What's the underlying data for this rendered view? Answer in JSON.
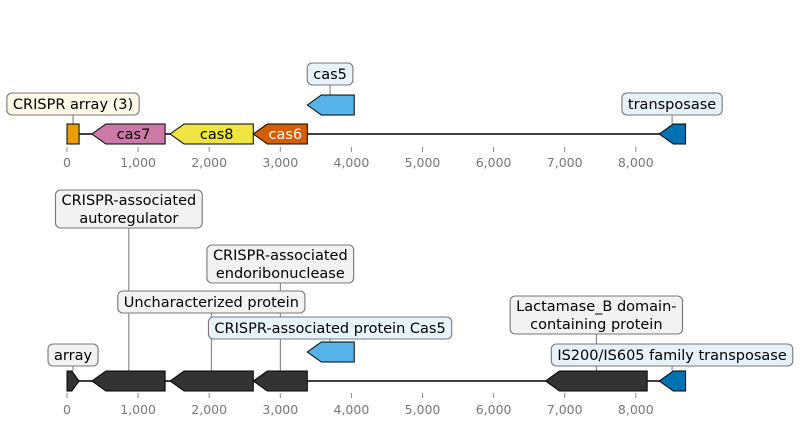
{
  "tracks": [
    {
      "name": "top-track",
      "length": 8700,
      "features": [
        {
          "id": "crispr-array",
          "start": 0,
          "end": 170,
          "strand": 0,
          "color": "#e69f00",
          "label": "",
          "label_color": "#000000"
        },
        {
          "id": "cas7",
          "start": 350,
          "end": 1380,
          "strand": -1,
          "color": "#cc79a7",
          "label": "cas7",
          "label_color": "#000000"
        },
        {
          "id": "cas8",
          "start": 1450,
          "end": 2620,
          "strand": -1,
          "color": "#f0e442",
          "label": "cas8",
          "label_color": "#000000"
        },
        {
          "id": "cas6",
          "start": 2620,
          "end": 3380,
          "strand": -1,
          "color": "#d55e00",
          "label": "cas6",
          "label_color": "#ffffff"
        },
        {
          "id": "cas5",
          "start": 3380,
          "end": 4040,
          "strand": -1,
          "color": "#56b4e9",
          "label": "",
          "label_color": "#000000",
          "lifted": true
        },
        {
          "id": "transposase",
          "start": 8330,
          "end": 8700,
          "strand": -1,
          "color": "#0072b2",
          "label": "",
          "label_color": "#000000"
        }
      ],
      "callouts": [
        {
          "id": "crispr-array",
          "text": [
            "CRISPR array (3)"
          ],
          "bg": "#fff8e6",
          "anchor": 85,
          "level": 0
        },
        {
          "id": "cas5",
          "text": [
            "cas5"
          ],
          "bg": "#e8f4fc",
          "anchor": 3700,
          "level": 1
        },
        {
          "id": "transposase",
          "text": [
            "transposase"
          ],
          "bg": "#e6f1f8",
          "anchor": 8510,
          "level": 0
        }
      ]
    },
    {
      "name": "bottom-track",
      "length": 8700,
      "features": [
        {
          "id": "array",
          "start": 0,
          "end": 170,
          "strand": 1,
          "color": "#333333"
        },
        {
          "id": "autoregulator",
          "start": 350,
          "end": 1380,
          "strand": -1,
          "color": "#333333"
        },
        {
          "id": "uncharacterized",
          "start": 1450,
          "end": 2620,
          "strand": -1,
          "color": "#333333"
        },
        {
          "id": "endoribonuclease",
          "start": 2620,
          "end": 3380,
          "strand": -1,
          "color": "#333333"
        },
        {
          "id": "cas5-protein",
          "start": 3380,
          "end": 4040,
          "strand": -1,
          "color": "#56b4e9",
          "lifted": true
        },
        {
          "id": "lactamase",
          "start": 6730,
          "end": 8160,
          "strand": -1,
          "color": "#333333"
        },
        {
          "id": "is200",
          "start": 8330,
          "end": 8700,
          "strand": -1,
          "color": "#0072b2"
        }
      ],
      "callouts": [
        {
          "id": "array",
          "text": [
            "array"
          ],
          "bg": "#f2f2f2",
          "anchor": 85,
          "level": 0
        },
        {
          "id": "autoregulator",
          "text": [
            "CRISPR-associated",
            "autoregulator"
          ],
          "bg": "#f2f2f2",
          "anchor": 870,
          "level": 5
        },
        {
          "id": "endoribonuclease",
          "text": [
            "CRISPR-associated",
            "endoribonuclease"
          ],
          "bg": "#f2f2f2",
          "anchor": 3000,
          "level": 3
        },
        {
          "id": "uncharacterized",
          "text": [
            "Uncharacterized protein"
          ],
          "bg": "#f2f2f2",
          "anchor": 2030,
          "level": 2
        },
        {
          "id": "lactamase",
          "text": [
            "Lactamase_B domain-",
            "containing protein"
          ],
          "bg": "#f2f2f2",
          "anchor": 7445,
          "level": 1
        },
        {
          "id": "cas5-protein",
          "text": [
            "CRISPR-associated protein Cas5"
          ],
          "bg": "#e8f4fc",
          "anchor": 3700,
          "level": 1
        },
        {
          "id": "is200",
          "text": [
            "IS200/IS605 family transposase"
          ],
          "bg": "#e6f1f8",
          "anchor": 8510,
          "level": 0
        }
      ]
    }
  ],
  "axis": {
    "ticks": [
      0,
      1000,
      2000,
      3000,
      4000,
      5000,
      6000,
      7000,
      8000
    ],
    "tick_labels": [
      "0",
      "1,000",
      "2,000",
      "3,000",
      "4,000",
      "5,000",
      "6,000",
      "7,000",
      "8,000"
    ]
  }
}
